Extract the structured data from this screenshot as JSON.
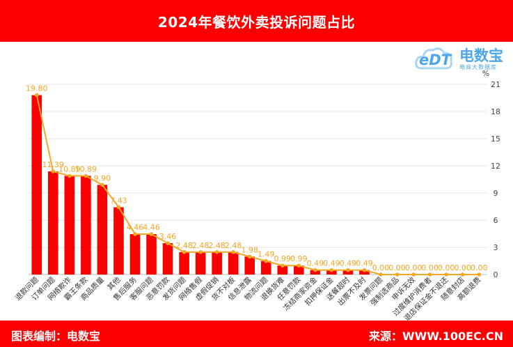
{
  "title": "2024年餐饮外卖投诉问题占比",
  "footer": {
    "left": "图表编制：电数宝",
    "right": "来源：WWW.100EC.CN"
  },
  "logo": {
    "name": "电数宝",
    "edt": "eDT",
    "sub": "电商大数据库"
  },
  "colors": {
    "bar": "#fb0000",
    "line": "#f5a623",
    "banner": "#fb0000"
  },
  "chart_data": {
    "type": "bar",
    "categories": [
      "退款问题",
      "订单问题",
      "网络欺诈",
      "霸王条款",
      "商品质量",
      "其他",
      "售后服务",
      "客服问题",
      "恶意罚款",
      "发货问题",
      "网络售假",
      "虚假促销",
      "货不对板",
      "信息泄露",
      "物流问题",
      "退换货难",
      "任意罚款",
      "冻结商家资金",
      "扣押保证金",
      "送餐超时",
      "出票不及时",
      "发票问题",
      "强制选商品",
      "申诉无效",
      "过度维护消费者",
      "退店保证金不退还",
      "随意封店",
      "高额退费"
    ],
    "values": [
      19.8,
      11.39,
      10.89,
      10.89,
      9.9,
      7.43,
      4.46,
      4.46,
      3.46,
      2.48,
      2.48,
      2.48,
      2.48,
      1.98,
      1.49,
      0.99,
      0.99,
      0.49,
      0.49,
      0.49,
      0.49,
      0.0,
      0.0,
      0.0,
      0.0,
      0.0,
      0.0,
      0.0
    ],
    "data_labels": [
      "19.80",
      "11.39",
      "10.89",
      "10.89",
      "9.90",
      "7.43",
      "4.46",
      "4.46",
      "3.46",
      "2.48",
      "2.48",
      "2.48",
      "2.48",
      "1.98",
      "1.49",
      "0.99",
      "0.99",
      "0.49",
      "0.49",
      "0.49",
      "0.49",
      "0.00",
      "0.00",
      "0.00",
      "0.00",
      "0.00",
      "0.00",
      "0.00"
    ],
    "series": [
      {
        "type": "bar"
      },
      {
        "type": "line"
      }
    ],
    "ylabel": "%",
    "ylim": [
      0,
      21
    ],
    "yticks": [
      "0",
      "3",
      "6",
      "9",
      "12",
      "15",
      "18",
      "21"
    ],
    "y_axis_side": "right",
    "grid": true
  }
}
